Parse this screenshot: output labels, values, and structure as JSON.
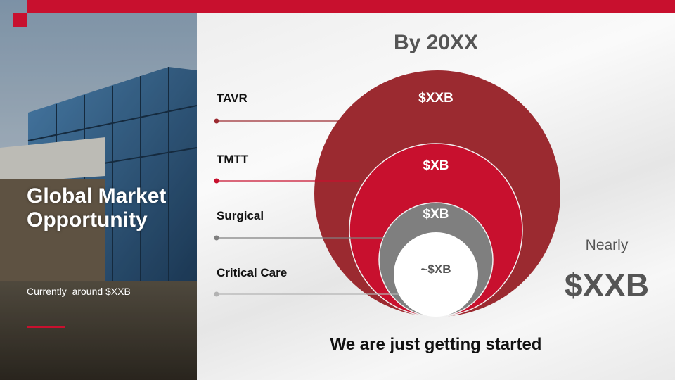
{
  "slide": {
    "left_panel": {
      "title": "Global Market Opportunity",
      "subtitle": "Currently  around $XXB"
    },
    "heading": "By 20XX",
    "segments": [
      {
        "label": "TAVR",
        "value": "$XXB"
      },
      {
        "label": "TMTT",
        "value": "$XB"
      },
      {
        "label": "Surgical",
        "value": "$XB"
      },
      {
        "label": "Critical Care",
        "value": "~$XB"
      }
    ],
    "total": {
      "prefix": "Nearly",
      "value": "$XXB"
    },
    "footer": "We are just getting started"
  }
}
